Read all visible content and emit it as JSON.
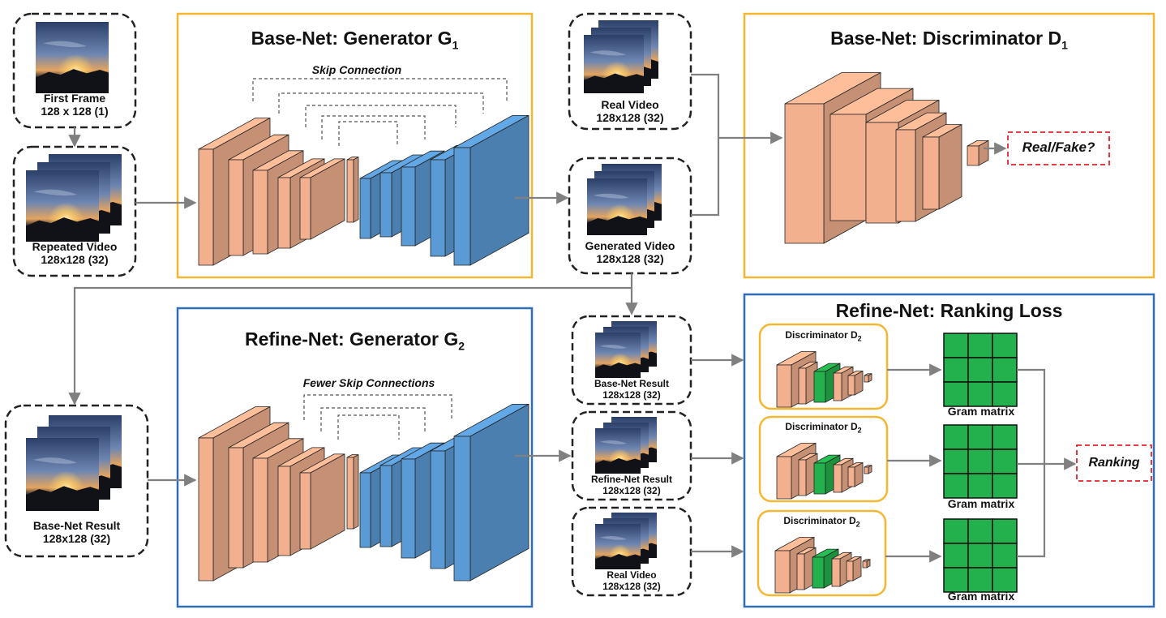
{
  "colors": {
    "orange_box": "#f5b731",
    "blue_box": "#2f6eb5",
    "layer_orange": "#f2b08f",
    "layer_blue": "#5b9bd5",
    "layer_green": "#22b14c",
    "arrow": "#808080",
    "red_dash": "#e8202a"
  },
  "inputs": {
    "first_frame": {
      "name": "First Frame",
      "size": "128 x 128 (1)"
    },
    "repeated_video": {
      "name": "Repeated Video",
      "size": "128x128 (32)"
    },
    "base_result_input": {
      "name": "Base-Net Result",
      "size": "128x128 (32)"
    }
  },
  "base_generator": {
    "title": "Base-Net: Generator G",
    "subscript": "1",
    "skip_label": "Skip Connection"
  },
  "base_discriminator": {
    "title": "Base-Net: Discriminator D",
    "subscript": "1",
    "output": "Real/Fake?"
  },
  "refine_generator": {
    "title": "Refine-Net: Generator G",
    "subscript": "2",
    "skip_label": "Fewer Skip Connections"
  },
  "ranking": {
    "title": "Refine-Net: Ranking Loss",
    "discriminator_label": "Discriminator D",
    "discriminator_sub": "2",
    "gram_label": "Gram matrix",
    "output": "Ranking"
  },
  "videos": {
    "real_top": {
      "name": "Real Video",
      "size": "128x128 (32)"
    },
    "generated": {
      "name": "Generated Video",
      "size": "128x128 (32)"
    },
    "base_result": {
      "name": "Base-Net Result",
      "size": "128x128 (32)"
    },
    "refine_result": {
      "name": "Refine-Net Result",
      "size": "128x128 (32)"
    },
    "real_bottom": {
      "name": "Real Video",
      "size": "128x128 (32)"
    }
  }
}
